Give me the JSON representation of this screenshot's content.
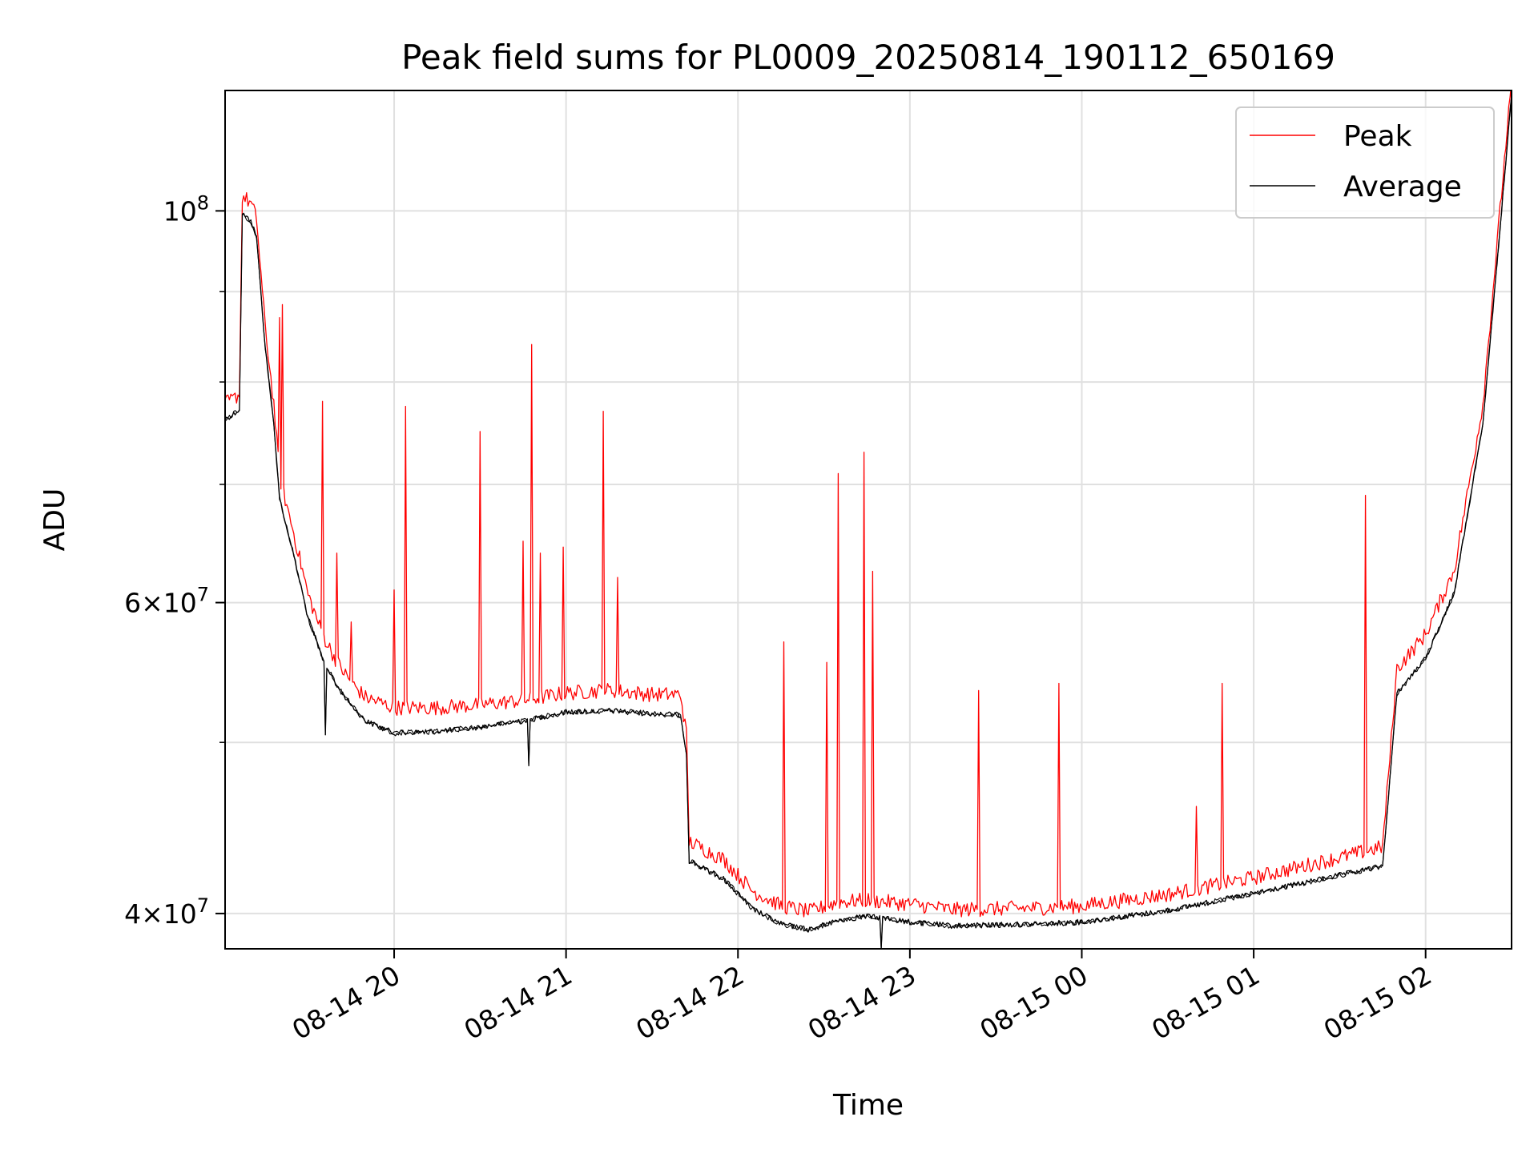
{
  "chart_data": {
    "type": "line",
    "title": "Peak field sums for PL0009_20250814_190112_650169",
    "xlabel": "Time",
    "ylabel": "ADU",
    "y_scale": "log",
    "grid": true,
    "legend_position": "top-right",
    "xlim": [
      "2025-08-14 19:01",
      "2025-08-15 02:30"
    ],
    "ylim": [
      38200000,
      117000000
    ],
    "x_ticks": [
      {
        "value": "2025-08-14 20:00",
        "label": "08-14 20"
      },
      {
        "value": "2025-08-14 21:00",
        "label": "08-14 21"
      },
      {
        "value": "2025-08-14 22:00",
        "label": "08-14 22"
      },
      {
        "value": "2025-08-14 23:00",
        "label": "08-14 23"
      },
      {
        "value": "2025-08-15 00:00",
        "label": "08-15 00"
      },
      {
        "value": "2025-08-15 01:00",
        "label": "08-15 01"
      },
      {
        "value": "2025-08-15 02:00",
        "label": "08-15 02"
      }
    ],
    "y_major_ticks": [
      {
        "value": 40000000,
        "base": "4",
        "exp": "7"
      },
      {
        "value": 60000000,
        "base": "6",
        "exp": "7"
      },
      {
        "value": 100000000,
        "base": "10",
        "exp": "8"
      }
    ],
    "y_minor_ticks": [
      50000000,
      70000000,
      80000000,
      90000000
    ],
    "series": [
      {
        "name": "Peak",
        "color": "#ff0000",
        "points": [
          [
            "2025-08-14 19:01",
            77000000
          ],
          [
            "2025-08-14 19:04",
            77500000
          ],
          [
            "2025-08-14 19:06",
            78000000
          ],
          [
            "2025-08-14 19:07",
            101000000
          ],
          [
            "2025-08-14 19:10",
            100000000
          ],
          [
            "2025-08-14 19:12",
            98000000
          ],
          [
            "2025-08-14 19:15",
            85000000
          ],
          [
            "2025-08-14 19:18",
            77000000
          ],
          [
            "2025-08-14 19:20",
            70000000
          ],
          [
            "2025-08-14 19:25",
            65000000
          ],
          [
            "2025-08-14 19:30",
            60000000
          ],
          [
            "2025-08-14 19:35",
            57000000
          ],
          [
            "2025-08-14 19:40",
            55000000
          ],
          [
            "2025-08-14 19:45",
            53500000
          ],
          [
            "2025-08-14 19:50",
            52500000
          ],
          [
            "2025-08-14 20:00",
            51800000
          ],
          [
            "2025-08-14 20:15",
            51800000
          ],
          [
            "2025-08-14 20:30",
            52000000
          ],
          [
            "2025-08-14 20:45",
            52300000
          ],
          [
            "2025-08-14 21:00",
            52800000
          ],
          [
            "2025-08-14 21:15",
            53000000
          ],
          [
            "2025-08-14 21:30",
            52700000
          ],
          [
            "2025-08-14 21:40",
            52700000
          ],
          [
            "2025-08-14 21:42",
            50000000
          ],
          [
            "2025-08-14 21:43",
            43500000
          ],
          [
            "2025-08-14 21:55",
            42500000
          ],
          [
            "2025-08-14 22:05",
            40800000
          ],
          [
            "2025-08-14 22:15",
            40000000
          ],
          [
            "2025-08-14 22:25",
            39700000
          ],
          [
            "2025-08-14 22:35",
            40200000
          ],
          [
            "2025-08-14 22:45",
            40300000
          ],
          [
            "2025-08-14 23:00",
            40100000
          ],
          [
            "2025-08-14 23:15",
            39800000
          ],
          [
            "2025-08-14 23:45",
            39900000
          ],
          [
            "2025-08-15 00:00",
            40000000
          ],
          [
            "2025-08-15 00:30",
            40600000
          ],
          [
            "2025-08-15 01:00",
            41500000
          ],
          [
            "2025-08-15 01:30",
            42600000
          ],
          [
            "2025-08-15 01:45",
            43200000
          ],
          [
            "2025-08-15 01:50",
            54500000
          ],
          [
            "2025-08-15 02:00",
            57000000
          ],
          [
            "2025-08-15 02:10",
            62000000
          ],
          [
            "2025-08-15 02:20",
            77000000
          ],
          [
            "2025-08-15 02:25",
            95000000
          ],
          [
            "2025-08-15 02:28",
            108000000
          ],
          [
            "2025-08-15 02:30",
            117000000
          ]
        ]
      },
      {
        "name": "Average",
        "color": "#000000",
        "points": [
          [
            "2025-08-14 19:01",
            76500000
          ],
          [
            "2025-08-14 19:04",
            77000000
          ],
          [
            "2025-08-14 19:06",
            77500000
          ],
          [
            "2025-08-14 19:07",
            100000000
          ],
          [
            "2025-08-14 19:10",
            99000000
          ],
          [
            "2025-08-14 19:12",
            97000000
          ],
          [
            "2025-08-14 19:15",
            84000000
          ],
          [
            "2025-08-14 19:18",
            76000000
          ],
          [
            "2025-08-14 19:20",
            69000000
          ],
          [
            "2025-08-14 19:25",
            64000000
          ],
          [
            "2025-08-14 19:30",
            59000000
          ],
          [
            "2025-08-14 19:35",
            56000000
          ],
          [
            "2025-08-14 19:40",
            54000000
          ],
          [
            "2025-08-14 19:45",
            52700000
          ],
          [
            "2025-08-14 19:50",
            51600000
          ],
          [
            "2025-08-14 20:00",
            50800000
          ],
          [
            "2025-08-14 20:15",
            50900000
          ],
          [
            "2025-08-14 20:30",
            51200000
          ],
          [
            "2025-08-14 20:45",
            51600000
          ],
          [
            "2025-08-14 21:00",
            52200000
          ],
          [
            "2025-08-14 21:15",
            52300000
          ],
          [
            "2025-08-14 21:30",
            52100000
          ],
          [
            "2025-08-14 21:40",
            52000000
          ],
          [
            "2025-08-14 21:42",
            49500000
          ],
          [
            "2025-08-14 21:43",
            43000000
          ],
          [
            "2025-08-14 21:55",
            42000000
          ],
          [
            "2025-08-14 22:05",
            40400000
          ],
          [
            "2025-08-14 22:15",
            39600000
          ],
          [
            "2025-08-14 22:25",
            39300000
          ],
          [
            "2025-08-14 22:35",
            39800000
          ],
          [
            "2025-08-14 22:45",
            40000000
          ],
          [
            "2025-08-14 23:00",
            39700000
          ],
          [
            "2025-08-14 23:15",
            39500000
          ],
          [
            "2025-08-14 23:45",
            39600000
          ],
          [
            "2025-08-15 00:00",
            39700000
          ],
          [
            "2025-08-15 00:30",
            40300000
          ],
          [
            "2025-08-15 01:00",
            41200000
          ],
          [
            "2025-08-15 01:30",
            42200000
          ],
          [
            "2025-08-15 01:45",
            42700000
          ],
          [
            "2025-08-15 01:50",
            53500000
          ],
          [
            "2025-08-15 02:00",
            56000000
          ],
          [
            "2025-08-15 02:10",
            61000000
          ],
          [
            "2025-08-15 02:20",
            76000000
          ],
          [
            "2025-08-15 02:25",
            94000000
          ],
          [
            "2025-08-15 02:28",
            107000000
          ],
          [
            "2025-08-15 02:30",
            117000000
          ]
        ]
      }
    ],
    "peak_spikes": [
      [
        "2025-08-14 19:20",
        87000000
      ],
      [
        "2025-08-14 19:21",
        88500000
      ],
      [
        "2025-08-14 19:35",
        78000000
      ],
      [
        "2025-08-14 19:40",
        64000000
      ],
      [
        "2025-08-14 19:45",
        58500000
      ],
      [
        "2025-08-14 20:00",
        61000000
      ],
      [
        "2025-08-14 20:04",
        77500000
      ],
      [
        "2025-08-14 20:30",
        75000000
      ],
      [
        "2025-08-14 20:45",
        65000000
      ],
      [
        "2025-08-14 20:48",
        84000000
      ],
      [
        "2025-08-14 20:51",
        64000000
      ],
      [
        "2025-08-14 20:59",
        64500000
      ],
      [
        "2025-08-14 21:13",
        77000000
      ],
      [
        "2025-08-14 21:18",
        62000000
      ],
      [
        "2025-08-14 22:16",
        57000000
      ],
      [
        "2025-08-14 22:31",
        55500000
      ],
      [
        "2025-08-14 22:35",
        71000000
      ],
      [
        "2025-08-14 22:44",
        73000000
      ],
      [
        "2025-08-14 22:47",
        62500000
      ],
      [
        "2025-08-14 23:24",
        53500000
      ],
      [
        "2025-08-14 23:52",
        54000000
      ],
      [
        "2025-08-15 00:40",
        46000000
      ],
      [
        "2025-08-15 00:49",
        54000000
      ],
      [
        "2025-08-15 01:39",
        69000000
      ]
    ],
    "average_dips": [
      [
        "2025-08-14 19:36",
        50500000
      ],
      [
        "2025-08-14 20:47",
        48500000
      ],
      [
        "2025-08-14 22:50",
        38200000
      ]
    ]
  }
}
